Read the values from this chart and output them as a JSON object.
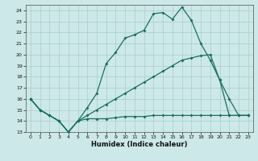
{
  "xlabel": "Humidex (Indice chaleur)",
  "bg_color": "#cce8e8",
  "grid_color": "#aacccc",
  "line_color": "#1a6e62",
  "xlim": [
    -0.5,
    23.5
  ],
  "ylim": [
    13,
    24.5
  ],
  "xticks": [
    0,
    1,
    2,
    3,
    4,
    5,
    6,
    7,
    8,
    9,
    10,
    11,
    12,
    13,
    14,
    15,
    16,
    17,
    18,
    19,
    20,
    21,
    22,
    23
  ],
  "yticks": [
    13,
    14,
    15,
    16,
    17,
    18,
    19,
    20,
    21,
    22,
    23,
    24
  ],
  "line1_x": [
    0,
    1,
    2,
    3,
    4,
    5,
    6,
    7,
    8,
    9,
    10,
    11,
    12,
    13,
    14,
    15,
    16,
    17,
    18,
    19,
    20,
    21,
    22,
    23
  ],
  "line1_y": [
    16,
    15,
    14.5,
    14,
    13,
    14,
    15.2,
    16.5,
    19.2,
    20.2,
    21.5,
    21.8,
    22.2,
    23.7,
    23.8,
    23.2,
    24.3,
    23.1,
    21.0,
    19.5,
    17.7,
    16.0,
    14.5,
    14.5
  ],
  "line2_x": [
    0,
    1,
    2,
    3,
    4,
    5,
    6,
    7,
    8,
    9,
    10,
    11,
    12,
    13,
    14,
    15,
    16,
    17,
    18,
    19,
    20,
    21,
    22,
    23
  ],
  "line2_y": [
    16,
    15,
    14.5,
    14,
    13,
    14,
    14.5,
    15.0,
    15.5,
    16.0,
    16.5,
    17.0,
    17.5,
    18.0,
    18.5,
    19.0,
    19.5,
    19.7,
    19.9,
    20.0,
    17.7,
    14.5,
    14.5,
    14.5
  ],
  "line3_x": [
    0,
    1,
    2,
    3,
    4,
    5,
    6,
    7,
    8,
    9,
    10,
    11,
    12,
    13,
    14,
    15,
    16,
    17,
    18,
    19,
    20,
    21,
    22,
    23
  ],
  "line3_y": [
    16,
    15,
    14.5,
    14,
    13,
    14,
    14.2,
    14.2,
    14.2,
    14.3,
    14.4,
    14.4,
    14.4,
    14.5,
    14.5,
    14.5,
    14.5,
    14.5,
    14.5,
    14.5,
    14.5,
    14.5,
    14.5,
    14.5
  ]
}
